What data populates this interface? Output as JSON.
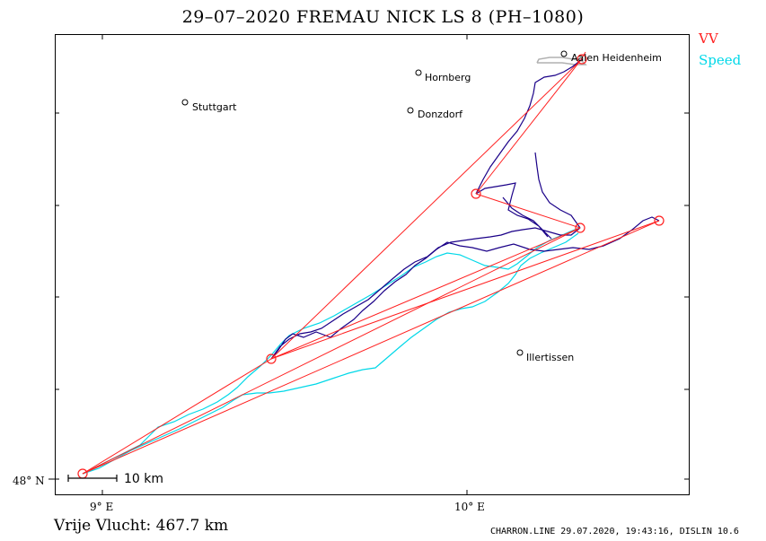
{
  "header": {
    "title": "29–07–2020    FREMAU NICK    LS 8 (PH–1080)"
  },
  "legend": {
    "items": [
      {
        "label": "VV",
        "color": "#ff2020"
      },
      {
        "label": "Speed",
        "color": "#00d8e8"
      }
    ]
  },
  "map": {
    "cities": [
      {
        "name": "Aalen Heidenheim"
      },
      {
        "name": "Hornberg"
      },
      {
        "name": "Stuttgart"
      },
      {
        "name": "Donzdorf"
      },
      {
        "name": "Illertissen"
      }
    ],
    "axes": {
      "lat_label": "48° N",
      "lon_labels": [
        "9° E",
        "10° E"
      ]
    },
    "scale_bar": {
      "label": "10  km"
    },
    "track_colors": {
      "vv": "#ff2020",
      "track": "#1a0088",
      "speed": "#00d8e8",
      "other": "#b0b0b0"
    }
  },
  "footer": {
    "distance": "Vrije Vlucht:  467.7 km",
    "meta": "CHARRON.LINE 29.07.2020, 19:43:16, DISLIN 10.6"
  }
}
